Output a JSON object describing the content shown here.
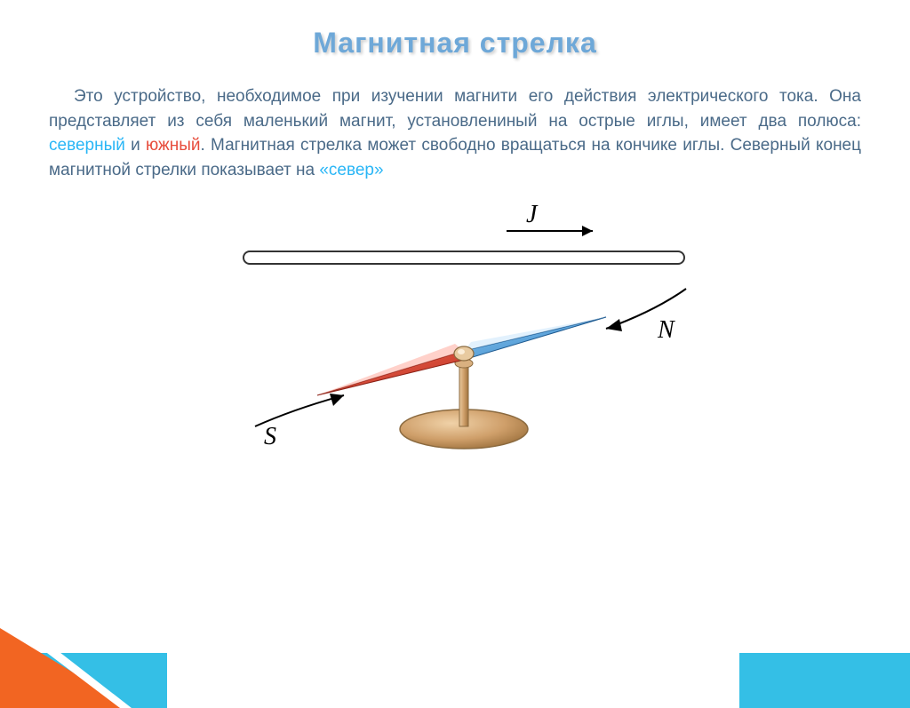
{
  "title": {
    "text": "Магнитная стрелка",
    "color": "#6ea8d8"
  },
  "paragraph": {
    "base_color": "#4a6a88",
    "parts": [
      {
        "t": "Это устройство, необходимое при изучении магнити его действия электрического тока. Она представляет из себя маленький магнит, установлениный на острые иглы, имеет два полюса: ",
        "c": "#4a6a88"
      },
      {
        "t": "северный",
        "c": "#29b6f6"
      },
      {
        "t": " и ",
        "c": "#4a6a88"
      },
      {
        "t": "южный",
        "c": "#e74c3c"
      },
      {
        "t": ". Магнитная стрелка может свободно вращаться на кончике иглы. Северный конец магнитной стрелки показывает на ",
        "c": "#4a6a88"
      },
      {
        "t": "«север»",
        "c": "#29b6f6"
      }
    ]
  },
  "diagram": {
    "j_label": "J",
    "n_label": "N",
    "s_label": "S",
    "label_font": "italic 28px 'Times New Roman', serif",
    "needle_red": "#d93b2b",
    "needle_blue": "#4aa3e6",
    "stand_fill": "#c79b6a",
    "stand_stroke": "#8b6a3f",
    "wire_stroke": "#333333",
    "background": "#ffffff"
  },
  "decor": {
    "blue": "#34bfe6",
    "orange": "#f26522"
  }
}
